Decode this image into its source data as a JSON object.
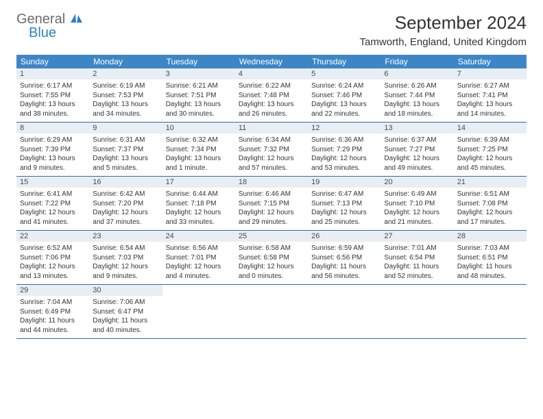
{
  "logo": {
    "general": "General",
    "blue": "Blue"
  },
  "title": "September 2024",
  "location": "Tamworth, England, United Kingdom",
  "colors": {
    "header_bg": "#3d86c6",
    "header_text": "#ffffff",
    "daynum_bg": "#e8eef4",
    "row_border": "#2d6ca8",
    "logo_gray": "#6b6b6b",
    "logo_blue": "#2f7fc3"
  },
  "weekdays": [
    "Sunday",
    "Monday",
    "Tuesday",
    "Wednesday",
    "Thursday",
    "Friday",
    "Saturday"
  ],
  "weeks": [
    [
      {
        "n": "1",
        "sr": "Sunrise: 6:17 AM",
        "ss": "Sunset: 7:55 PM",
        "d1": "Daylight: 13 hours",
        "d2": "and 38 minutes."
      },
      {
        "n": "2",
        "sr": "Sunrise: 6:19 AM",
        "ss": "Sunset: 7:53 PM",
        "d1": "Daylight: 13 hours",
        "d2": "and 34 minutes."
      },
      {
        "n": "3",
        "sr": "Sunrise: 6:21 AM",
        "ss": "Sunset: 7:51 PM",
        "d1": "Daylight: 13 hours",
        "d2": "and 30 minutes."
      },
      {
        "n": "4",
        "sr": "Sunrise: 6:22 AM",
        "ss": "Sunset: 7:48 PM",
        "d1": "Daylight: 13 hours",
        "d2": "and 26 minutes."
      },
      {
        "n": "5",
        "sr": "Sunrise: 6:24 AM",
        "ss": "Sunset: 7:46 PM",
        "d1": "Daylight: 13 hours",
        "d2": "and 22 minutes."
      },
      {
        "n": "6",
        "sr": "Sunrise: 6:26 AM",
        "ss": "Sunset: 7:44 PM",
        "d1": "Daylight: 13 hours",
        "d2": "and 18 minutes."
      },
      {
        "n": "7",
        "sr": "Sunrise: 6:27 AM",
        "ss": "Sunset: 7:41 PM",
        "d1": "Daylight: 13 hours",
        "d2": "and 14 minutes."
      }
    ],
    [
      {
        "n": "8",
        "sr": "Sunrise: 6:29 AM",
        "ss": "Sunset: 7:39 PM",
        "d1": "Daylight: 13 hours",
        "d2": "and 9 minutes."
      },
      {
        "n": "9",
        "sr": "Sunrise: 6:31 AM",
        "ss": "Sunset: 7:37 PM",
        "d1": "Daylight: 13 hours",
        "d2": "and 5 minutes."
      },
      {
        "n": "10",
        "sr": "Sunrise: 6:32 AM",
        "ss": "Sunset: 7:34 PM",
        "d1": "Daylight: 13 hours",
        "d2": "and 1 minute."
      },
      {
        "n": "11",
        "sr": "Sunrise: 6:34 AM",
        "ss": "Sunset: 7:32 PM",
        "d1": "Daylight: 12 hours",
        "d2": "and 57 minutes."
      },
      {
        "n": "12",
        "sr": "Sunrise: 6:36 AM",
        "ss": "Sunset: 7:29 PM",
        "d1": "Daylight: 12 hours",
        "d2": "and 53 minutes."
      },
      {
        "n": "13",
        "sr": "Sunrise: 6:37 AM",
        "ss": "Sunset: 7:27 PM",
        "d1": "Daylight: 12 hours",
        "d2": "and 49 minutes."
      },
      {
        "n": "14",
        "sr": "Sunrise: 6:39 AM",
        "ss": "Sunset: 7:25 PM",
        "d1": "Daylight: 12 hours",
        "d2": "and 45 minutes."
      }
    ],
    [
      {
        "n": "15",
        "sr": "Sunrise: 6:41 AM",
        "ss": "Sunset: 7:22 PM",
        "d1": "Daylight: 12 hours",
        "d2": "and 41 minutes."
      },
      {
        "n": "16",
        "sr": "Sunrise: 6:42 AM",
        "ss": "Sunset: 7:20 PM",
        "d1": "Daylight: 12 hours",
        "d2": "and 37 minutes."
      },
      {
        "n": "17",
        "sr": "Sunrise: 6:44 AM",
        "ss": "Sunset: 7:18 PM",
        "d1": "Daylight: 12 hours",
        "d2": "and 33 minutes."
      },
      {
        "n": "18",
        "sr": "Sunrise: 6:46 AM",
        "ss": "Sunset: 7:15 PM",
        "d1": "Daylight: 12 hours",
        "d2": "and 29 minutes."
      },
      {
        "n": "19",
        "sr": "Sunrise: 6:47 AM",
        "ss": "Sunset: 7:13 PM",
        "d1": "Daylight: 12 hours",
        "d2": "and 25 minutes."
      },
      {
        "n": "20",
        "sr": "Sunrise: 6:49 AM",
        "ss": "Sunset: 7:10 PM",
        "d1": "Daylight: 12 hours",
        "d2": "and 21 minutes."
      },
      {
        "n": "21",
        "sr": "Sunrise: 6:51 AM",
        "ss": "Sunset: 7:08 PM",
        "d1": "Daylight: 12 hours",
        "d2": "and 17 minutes."
      }
    ],
    [
      {
        "n": "22",
        "sr": "Sunrise: 6:52 AM",
        "ss": "Sunset: 7:06 PM",
        "d1": "Daylight: 12 hours",
        "d2": "and 13 minutes."
      },
      {
        "n": "23",
        "sr": "Sunrise: 6:54 AM",
        "ss": "Sunset: 7:03 PM",
        "d1": "Daylight: 12 hours",
        "d2": "and 9 minutes."
      },
      {
        "n": "24",
        "sr": "Sunrise: 6:56 AM",
        "ss": "Sunset: 7:01 PM",
        "d1": "Daylight: 12 hours",
        "d2": "and 4 minutes."
      },
      {
        "n": "25",
        "sr": "Sunrise: 6:58 AM",
        "ss": "Sunset: 6:58 PM",
        "d1": "Daylight: 12 hours",
        "d2": "and 0 minutes."
      },
      {
        "n": "26",
        "sr": "Sunrise: 6:59 AM",
        "ss": "Sunset: 6:56 PM",
        "d1": "Daylight: 11 hours",
        "d2": "and 56 minutes."
      },
      {
        "n": "27",
        "sr": "Sunrise: 7:01 AM",
        "ss": "Sunset: 6:54 PM",
        "d1": "Daylight: 11 hours",
        "d2": "and 52 minutes."
      },
      {
        "n": "28",
        "sr": "Sunrise: 7:03 AM",
        "ss": "Sunset: 6:51 PM",
        "d1": "Daylight: 11 hours",
        "d2": "and 48 minutes."
      }
    ],
    [
      {
        "n": "29",
        "sr": "Sunrise: 7:04 AM",
        "ss": "Sunset: 6:49 PM",
        "d1": "Daylight: 11 hours",
        "d2": "and 44 minutes."
      },
      {
        "n": "30",
        "sr": "Sunrise: 7:06 AM",
        "ss": "Sunset: 6:47 PM",
        "d1": "Daylight: 11 hours",
        "d2": "and 40 minutes."
      },
      null,
      null,
      null,
      null,
      null
    ]
  ]
}
